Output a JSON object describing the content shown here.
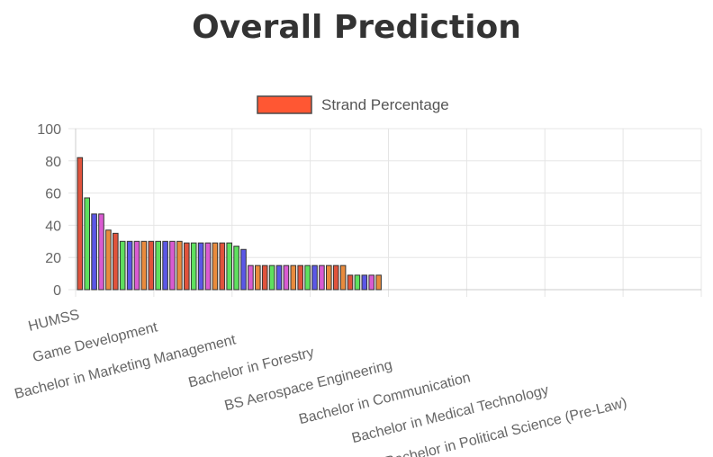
{
  "page": {
    "title": "Overall Prediction"
  },
  "colors": {
    "legend_fill": "#ff5733",
    "legend_border": "#4a4a4a",
    "bar_border": "#333333",
    "grid": "#e5e5e5",
    "axis": "#cccccc",
    "text": "#666666"
  },
  "chart_data": {
    "type": "bar",
    "legend": {
      "label": "Strand Percentage",
      "position": "top"
    },
    "ylim": [
      0,
      100
    ],
    "yticks": [
      0,
      20,
      40,
      60,
      80,
      100
    ],
    "grid": true,
    "xtick_labels": [
      "HUMSS",
      "Game Development",
      "Bachelor in Marketing Management",
      "Bachelor in Forestry",
      "BS Aerospace Engineering",
      "Bachelor in Communication",
      "Bachelor in Medical Technology",
      "Bachelor in Political Science (Pre-Law)"
    ],
    "x_groups": 8,
    "values": [
      82,
      57,
      47,
      47,
      37,
      35,
      30,
      30,
      30,
      30,
      30,
      30,
      30,
      30,
      30,
      29,
      29,
      29,
      29,
      29,
      29,
      29,
      27,
      25,
      15,
      15,
      15,
      15,
      15,
      15,
      15,
      15,
      15,
      15,
      15,
      15,
      15,
      15,
      9,
      9,
      9,
      9,
      9
    ],
    "bar_colors": [
      "#e0533c",
      "#5ee05e",
      "#5b57e6",
      "#d95bd1",
      "#e98b3d",
      "#e0533c",
      "#5ee05e",
      "#5b57e6",
      "#d95bd1",
      "#e98b3d",
      "#e0533c",
      "#5ee05e",
      "#5b57e6",
      "#d95bd1",
      "#e98b3d",
      "#e0533c",
      "#5ee05e",
      "#5b57e6",
      "#d95bd1",
      "#e98b3d",
      "#e0533c",
      "#5ee05e",
      "#5ee05e",
      "#5b57e6",
      "#d95bd1",
      "#e98b3d",
      "#e0533c",
      "#5ee05e",
      "#5b57e6",
      "#d95bd1",
      "#e98b3d",
      "#e0533c",
      "#5ee05e",
      "#5b57e6",
      "#d95bd1",
      "#e98b3d",
      "#e0533c",
      "#e98b3d",
      "#e0533c",
      "#5ee05e",
      "#5b57e6",
      "#d95bd1",
      "#e98b3d"
    ]
  }
}
